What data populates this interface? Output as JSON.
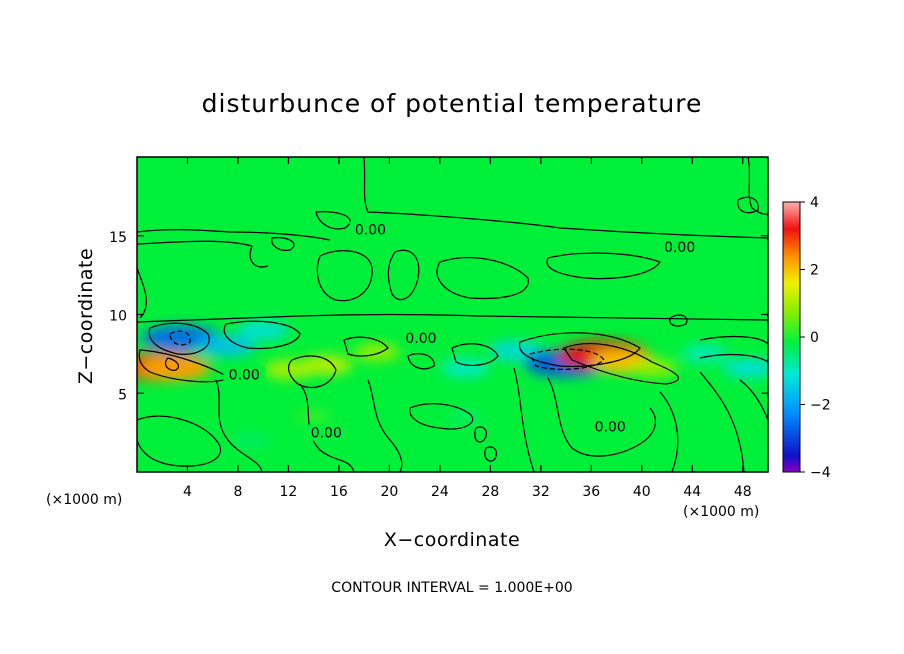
{
  "chart_data": {
    "type": "heatmap",
    "title": "disturbunce of potential temperature",
    "xlabel": "X−coordinate",
    "ylabel": "Z−coordinate",
    "x_unit": "(×1000 m)",
    "y_unit": "(×1000 m)",
    "xlim": [
      0,
      50
    ],
    "ylim": [
      0,
      20
    ],
    "x_ticks": [
      4,
      8,
      12,
      16,
      20,
      24,
      28,
      32,
      36,
      40,
      44,
      48
    ],
    "y_ticks": [
      5,
      10,
      15
    ],
    "x_tick_labels": [
      "4",
      "8",
      "12",
      "16",
      "20",
      "24",
      "28",
      "32",
      "36",
      "40",
      "44",
      "48"
    ],
    "y_tick_labels": [
      "5",
      "10",
      "15"
    ],
    "colorbar": {
      "range": [
        -4,
        4
      ],
      "ticks": [
        4,
        2,
        0,
        -2,
        -4
      ],
      "tick_labels": [
        "4",
        "2",
        "0",
        "−2",
        "−4"
      ]
    },
    "contour_interval_text": "CONTOUR INTERVAL = 1.000E+00",
    "contour_labels": [
      {
        "text": "0.00",
        "x": 18.5,
        "z": 15.4
      },
      {
        "text": "0.00",
        "x": 43.0,
        "z": 14.3
      },
      {
        "text": "0.00",
        "x": 22.5,
        "z": 8.5
      },
      {
        "text": "0.00",
        "x": 8.5,
        "z": 6.2
      },
      {
        "text": "0.00",
        "x": 15.0,
        "z": 2.5
      },
      {
        "text": "0.00",
        "x": 37.5,
        "z": 2.9
      }
    ],
    "features": [
      {
        "x": 3.5,
        "z": 8.5,
        "value": -2.6
      },
      {
        "x": 7.0,
        "z": 8.0,
        "value": -1.6
      },
      {
        "x": 10.0,
        "z": 9.0,
        "value": -1.2
      },
      {
        "x": 2.0,
        "z": 6.7,
        "value": 3.0
      },
      {
        "x": 3.0,
        "z": 6.6,
        "value": 2.2
      },
      {
        "x": 12.0,
        "z": 6.5,
        "value": 1.1
      },
      {
        "x": 15.0,
        "z": 6.8,
        "value": 1.2
      },
      {
        "x": 19.0,
        "z": 7.6,
        "value": 0.9
      },
      {
        "x": 26.0,
        "z": 6.6,
        "value": -1.0
      },
      {
        "x": 30.0,
        "z": 7.7,
        "value": -1.3
      },
      {
        "x": 34.0,
        "z": 6.9,
        "value": -2.8
      },
      {
        "x": 37.0,
        "z": 7.4,
        "value": 3.2
      },
      {
        "x": 38.5,
        "z": 7.0,
        "value": 1.9
      },
      {
        "x": 41.0,
        "z": 6.6,
        "value": 0.9
      },
      {
        "x": 45.0,
        "z": 7.5,
        "value": -0.9
      },
      {
        "x": 48.5,
        "z": 6.6,
        "value": -1.2
      },
      {
        "x": 9.0,
        "z": 2.0,
        "value": -0.3
      },
      {
        "x": 14.0,
        "z": 3.5,
        "value": 0.3
      },
      {
        "x": 26.0,
        "z": 3.5,
        "value": -0.3
      }
    ]
  }
}
